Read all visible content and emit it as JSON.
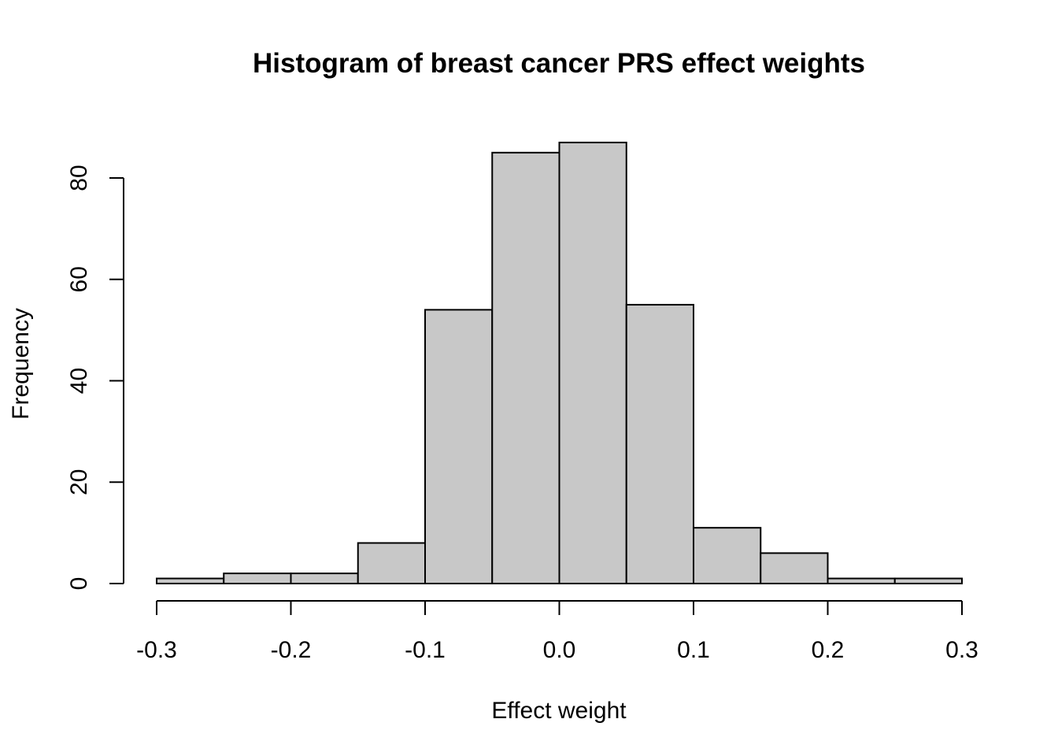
{
  "chart_data": {
    "type": "bar",
    "title": "Histogram of breast cancer PRS effect weights",
    "xlabel": "Effect weight",
    "ylabel": "Frequency",
    "bins": [
      {
        "from": -0.3,
        "to": -0.25,
        "count": 1
      },
      {
        "from": -0.25,
        "to": -0.2,
        "count": 2
      },
      {
        "from": -0.2,
        "to": -0.15,
        "count": 2
      },
      {
        "from": -0.15,
        "to": -0.1,
        "count": 8
      },
      {
        "from": -0.1,
        "to": -0.05,
        "count": 54
      },
      {
        "from": -0.05,
        "to": 0.0,
        "count": 85
      },
      {
        "from": 0.0,
        "to": 0.05,
        "count": 87
      },
      {
        "from": 0.05,
        "to": 0.1,
        "count": 55
      },
      {
        "from": 0.1,
        "to": 0.15,
        "count": 11
      },
      {
        "from": 0.15,
        "to": 0.2,
        "count": 6
      },
      {
        "from": 0.2,
        "to": 0.25,
        "count": 1
      },
      {
        "from": 0.25,
        "to": 0.3,
        "count": 1
      }
    ],
    "xlim": [
      -0.3,
      0.3
    ],
    "ylim": [
      0,
      80
    ],
    "x_ticks": [
      -0.3,
      -0.2,
      -0.1,
      0.0,
      0.1,
      0.2,
      0.3
    ],
    "x_tick_labels": [
      "-0.3",
      "-0.2",
      "-0.1",
      "0.0",
      "0.1",
      "0.2",
      "0.3"
    ],
    "y_ticks": [
      0,
      20,
      40,
      60,
      80
    ],
    "y_tick_labels": [
      "0",
      "20",
      "40",
      "60",
      "80"
    ],
    "bar_color": "#c8c8c8",
    "border_color": "#000000",
    "grid": false,
    "legend": "none"
  }
}
